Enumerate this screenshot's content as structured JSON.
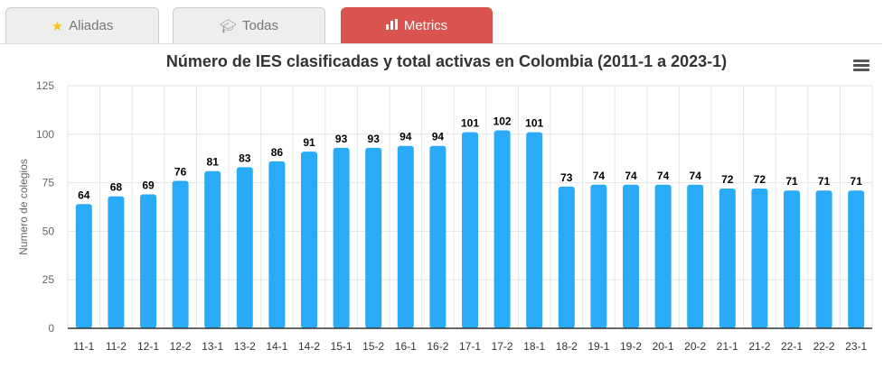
{
  "tabs": [
    {
      "label": "Aliadas",
      "icon": "star-icon"
    },
    {
      "label": "Todas",
      "icon": "graduation-cap-icon"
    },
    {
      "label": "Metrics",
      "icon": "bar-chart-icon"
    }
  ],
  "colors": {
    "bar": "#2aabf7",
    "active_tab": "#d9534f",
    "star": "#f5c518"
  },
  "chart_data": {
    "type": "bar",
    "title": "Número de IES clasificadas y total activas en Colombia (2011-1 a 2023-1)",
    "xlabel": "",
    "ylabel": "Numero de colegios",
    "ylim": [
      0,
      125
    ],
    "yticks": [
      0,
      25,
      50,
      75,
      100,
      125
    ],
    "categories": [
      "11-1",
      "11-2",
      "12-1",
      "12-2",
      "13-1",
      "13-2",
      "14-1",
      "14-2",
      "15-1",
      "15-2",
      "16-1",
      "16-2",
      "17-1",
      "17-2",
      "18-1",
      "18-2",
      "19-1",
      "19-2",
      "20-1",
      "20-2",
      "21-1",
      "21-2",
      "22-1",
      "22-2",
      "23-1"
    ],
    "values": [
      64,
      68,
      69,
      76,
      81,
      83,
      86,
      91,
      93,
      93,
      94,
      94,
      101,
      102,
      101,
      73,
      74,
      74,
      74,
      74,
      72,
      72,
      71,
      71,
      71
    ],
    "grid": true,
    "legend": "none"
  }
}
